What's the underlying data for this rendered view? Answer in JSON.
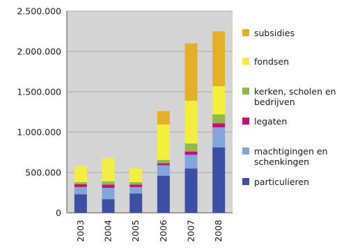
{
  "chart_data": {
    "type": "bar",
    "stacked": true,
    "categories": [
      "2003",
      "2004",
      "2005",
      "2006",
      "2007",
      "2008"
    ],
    "ylim": [
      0,
      2500000
    ],
    "yticks": [
      0,
      500000,
      1000000,
      1500000,
      2000000,
      2500000
    ],
    "ytick_labels": [
      "0",
      "500.000",
      "1.000.000",
      "1.500.000",
      "2.000.000",
      "2.500.000"
    ],
    "grid": true,
    "legend_position": "right",
    "series": [
      {
        "name": "particulieren",
        "color": "#3b4fa6",
        "values": [
          230000,
          170000,
          240000,
          460000,
          550000,
          810000
        ]
      },
      {
        "name": "machtigingen en schenkingen",
        "color": "#7fa7da",
        "values": [
          90000,
          140000,
          80000,
          130000,
          170000,
          250000
        ]
      },
      {
        "name": "legaten",
        "color": "#cc0c7a",
        "values": [
          35000,
          40000,
          30000,
          25000,
          40000,
          50000
        ]
      },
      {
        "name": "kerken, scholen en bedrijven",
        "color": "#8dbb4a",
        "values": [
          25000,
          40000,
          30000,
          40000,
          100000,
          110000
        ]
      },
      {
        "name": "fondsen",
        "color": "#f4ef3c",
        "values": [
          200000,
          290000,
          170000,
          440000,
          530000,
          350000
        ]
      },
      {
        "name": "subsidies",
        "color": "#e5af2a",
        "values": [
          0,
          0,
          0,
          165000,
          710000,
          680000
        ]
      }
    ]
  },
  "legend": [
    {
      "label": "subsidies",
      "color": "#e5af2a"
    },
    {
      "label": "fondsen",
      "color": "#f4ef3c"
    },
    {
      "label": "kerken, scholen en bedrijven",
      "color": "#8dbb4a"
    },
    {
      "label": "legaten",
      "color": "#cc0c7a"
    },
    {
      "label": "machtigingen en schenkingen",
      "color": "#7fa7da"
    },
    {
      "label": "particulieren",
      "color": "#3b4fa6"
    }
  ]
}
